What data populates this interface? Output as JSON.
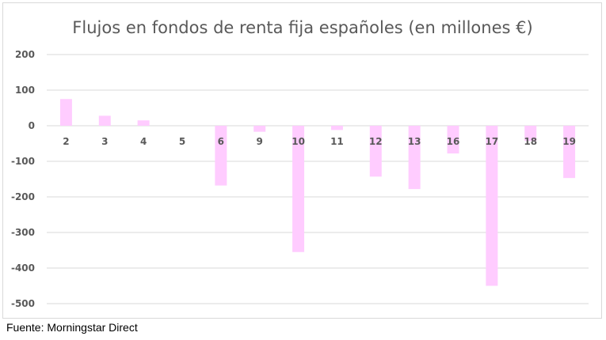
{
  "chart_data": {
    "type": "bar",
    "title": "Flujos en fondos de renta fija españoles (en millones €)",
    "xlabel": "",
    "ylabel": "",
    "categories": [
      "2",
      "3",
      "4",
      "5",
      "6",
      "9",
      "10",
      "11",
      "12",
      "13",
      "16",
      "17",
      "18",
      "19"
    ],
    "values": [
      75,
      28,
      15,
      0,
      -168,
      -17,
      -355,
      -12,
      -143,
      -178,
      -78,
      -450,
      -43,
      -147
    ],
    "ylim": [
      -500,
      200
    ],
    "yticks": [
      200,
      100,
      0,
      -100,
      -200,
      -300,
      -400,
      -500
    ],
    "grid": true,
    "legend": "none",
    "bar_color": "#ffccff"
  },
  "source_note": "Fuente: Morningstar Direct"
}
